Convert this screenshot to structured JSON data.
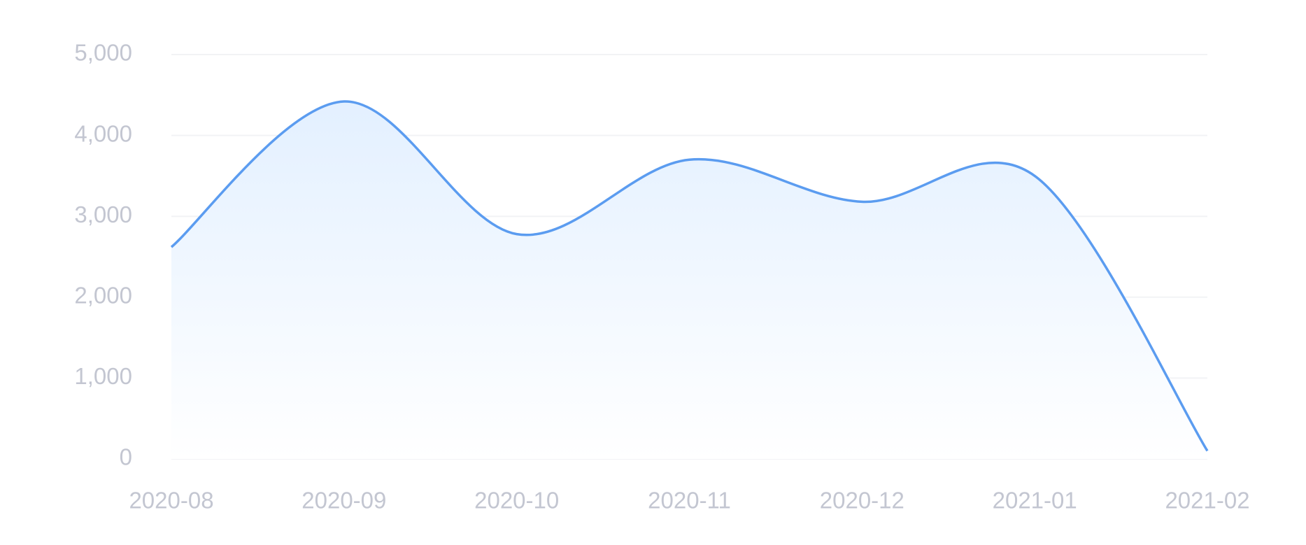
{
  "chart_data": {
    "type": "area",
    "x": [
      "2020-08",
      "2020-09",
      "2020-10",
      "2020-11",
      "2020-12",
      "2021-01",
      "2021-02"
    ],
    "series": [
      {
        "color": "#5b9cf0",
        "values": [
          2620,
          4420,
          2780,
          3700,
          3180,
          3500,
          100
        ]
      }
    ],
    "smooth": true,
    "ylim": [
      0,
      5000
    ],
    "yticks": [
      0,
      {
        "value": 1000,
        "label": "1,000"
      },
      {
        "value": 2000,
        "label": "2,000"
      },
      {
        "value": 3000,
        "label": "3,000"
      },
      {
        "value": 4000,
        "label": "4,000"
      },
      {
        "value": 5000,
        "label": "5,000"
      }
    ],
    "grid": true
  }
}
